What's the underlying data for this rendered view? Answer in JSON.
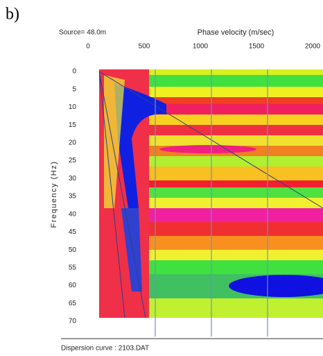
{
  "panel_label": "b)",
  "chart_data": {
    "type": "dispersion-image",
    "source_label": "Source= 48.0m",
    "xlabel": "Phase velocity (m/sec)",
    "ylabel": "Frequency (Hz)",
    "footer": "Dispersion curve : 2103.DAT",
    "xlim": [
      0,
      2000
    ],
    "xticks": [
      0,
      500,
      1000,
      1500,
      2000
    ],
    "ylim": [
      0,
      70
    ],
    "yticks": [
      0,
      5,
      10,
      15,
      20,
      25,
      30,
      35,
      40,
      45,
      50,
      55,
      60,
      65,
      70
    ],
    "grid": true
  }
}
